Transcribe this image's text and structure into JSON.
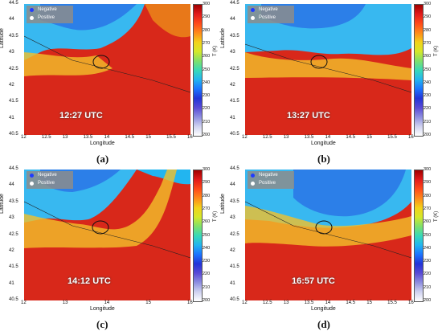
{
  "panels": [
    {
      "id": "a",
      "label": "(a)",
      "time": "12:27 UTC",
      "xticks": [
        "12",
        "12.5",
        "13",
        "13.5",
        "14",
        "14.5",
        "15",
        "15.5",
        "16"
      ],
      "yticks": [
        "44.5",
        "44",
        "43.5",
        "43",
        "42.5",
        "42",
        "41.5",
        "41",
        "40.5"
      ],
      "cbar": [
        "300",
        "290",
        "280",
        "270",
        "260",
        "250",
        "240",
        "230",
        "220",
        "210",
        "200"
      ]
    },
    {
      "id": "b",
      "label": "(b)",
      "time": "13:27 UTC",
      "xticks": [
        "12",
        "12.5",
        "13",
        "13.5",
        "14",
        "14.5",
        "15",
        "15.5",
        "16"
      ],
      "yticks": [
        "44.5",
        "44",
        "43.5",
        "43",
        "42.5",
        "42",
        "41.5",
        "41",
        "40.5"
      ],
      "cbar": [
        "300",
        "290",
        "280",
        "270",
        "260",
        "250",
        "240",
        "230",
        "220",
        "210",
        "200"
      ]
    },
    {
      "id": "c",
      "label": "(c)",
      "time": "14:12 UTC",
      "xticks": [
        "12",
        "13",
        "14",
        "15",
        "16"
      ],
      "yticks": [
        "44.5",
        "44",
        "43.5",
        "43",
        "42.5",
        "42",
        "41.5",
        "41",
        "40.5"
      ],
      "cbar": [
        "300",
        "290",
        "280",
        "270",
        "260",
        "250",
        "240",
        "230",
        "220",
        "210",
        "200"
      ]
    },
    {
      "id": "d",
      "label": "(d)",
      "time": "16:57 UTC",
      "xticks": [
        "12",
        "12.5",
        "13",
        "13.5",
        "14",
        "14.5",
        "15",
        "15.5",
        "16"
      ],
      "yticks": [
        "44.5",
        "44",
        "43.5",
        "43",
        "42.5",
        "42",
        "41.5",
        "41",
        "40.5"
      ],
      "cbar": [
        "300",
        "290",
        "280",
        "270",
        "260",
        "250",
        "240",
        "230",
        "220",
        "210",
        "200"
      ]
    }
  ],
  "axes": {
    "xlabel": "Longitude",
    "ylabel": "Latitude",
    "cbar_label": "T (K)"
  },
  "legend": {
    "negative": "Negative",
    "positive": "Positive"
  },
  "colors": {
    "negative": "#1e3cff",
    "positive": "#ffffff",
    "hot": "#e02010",
    "cold": "#3aa0f0"
  }
}
